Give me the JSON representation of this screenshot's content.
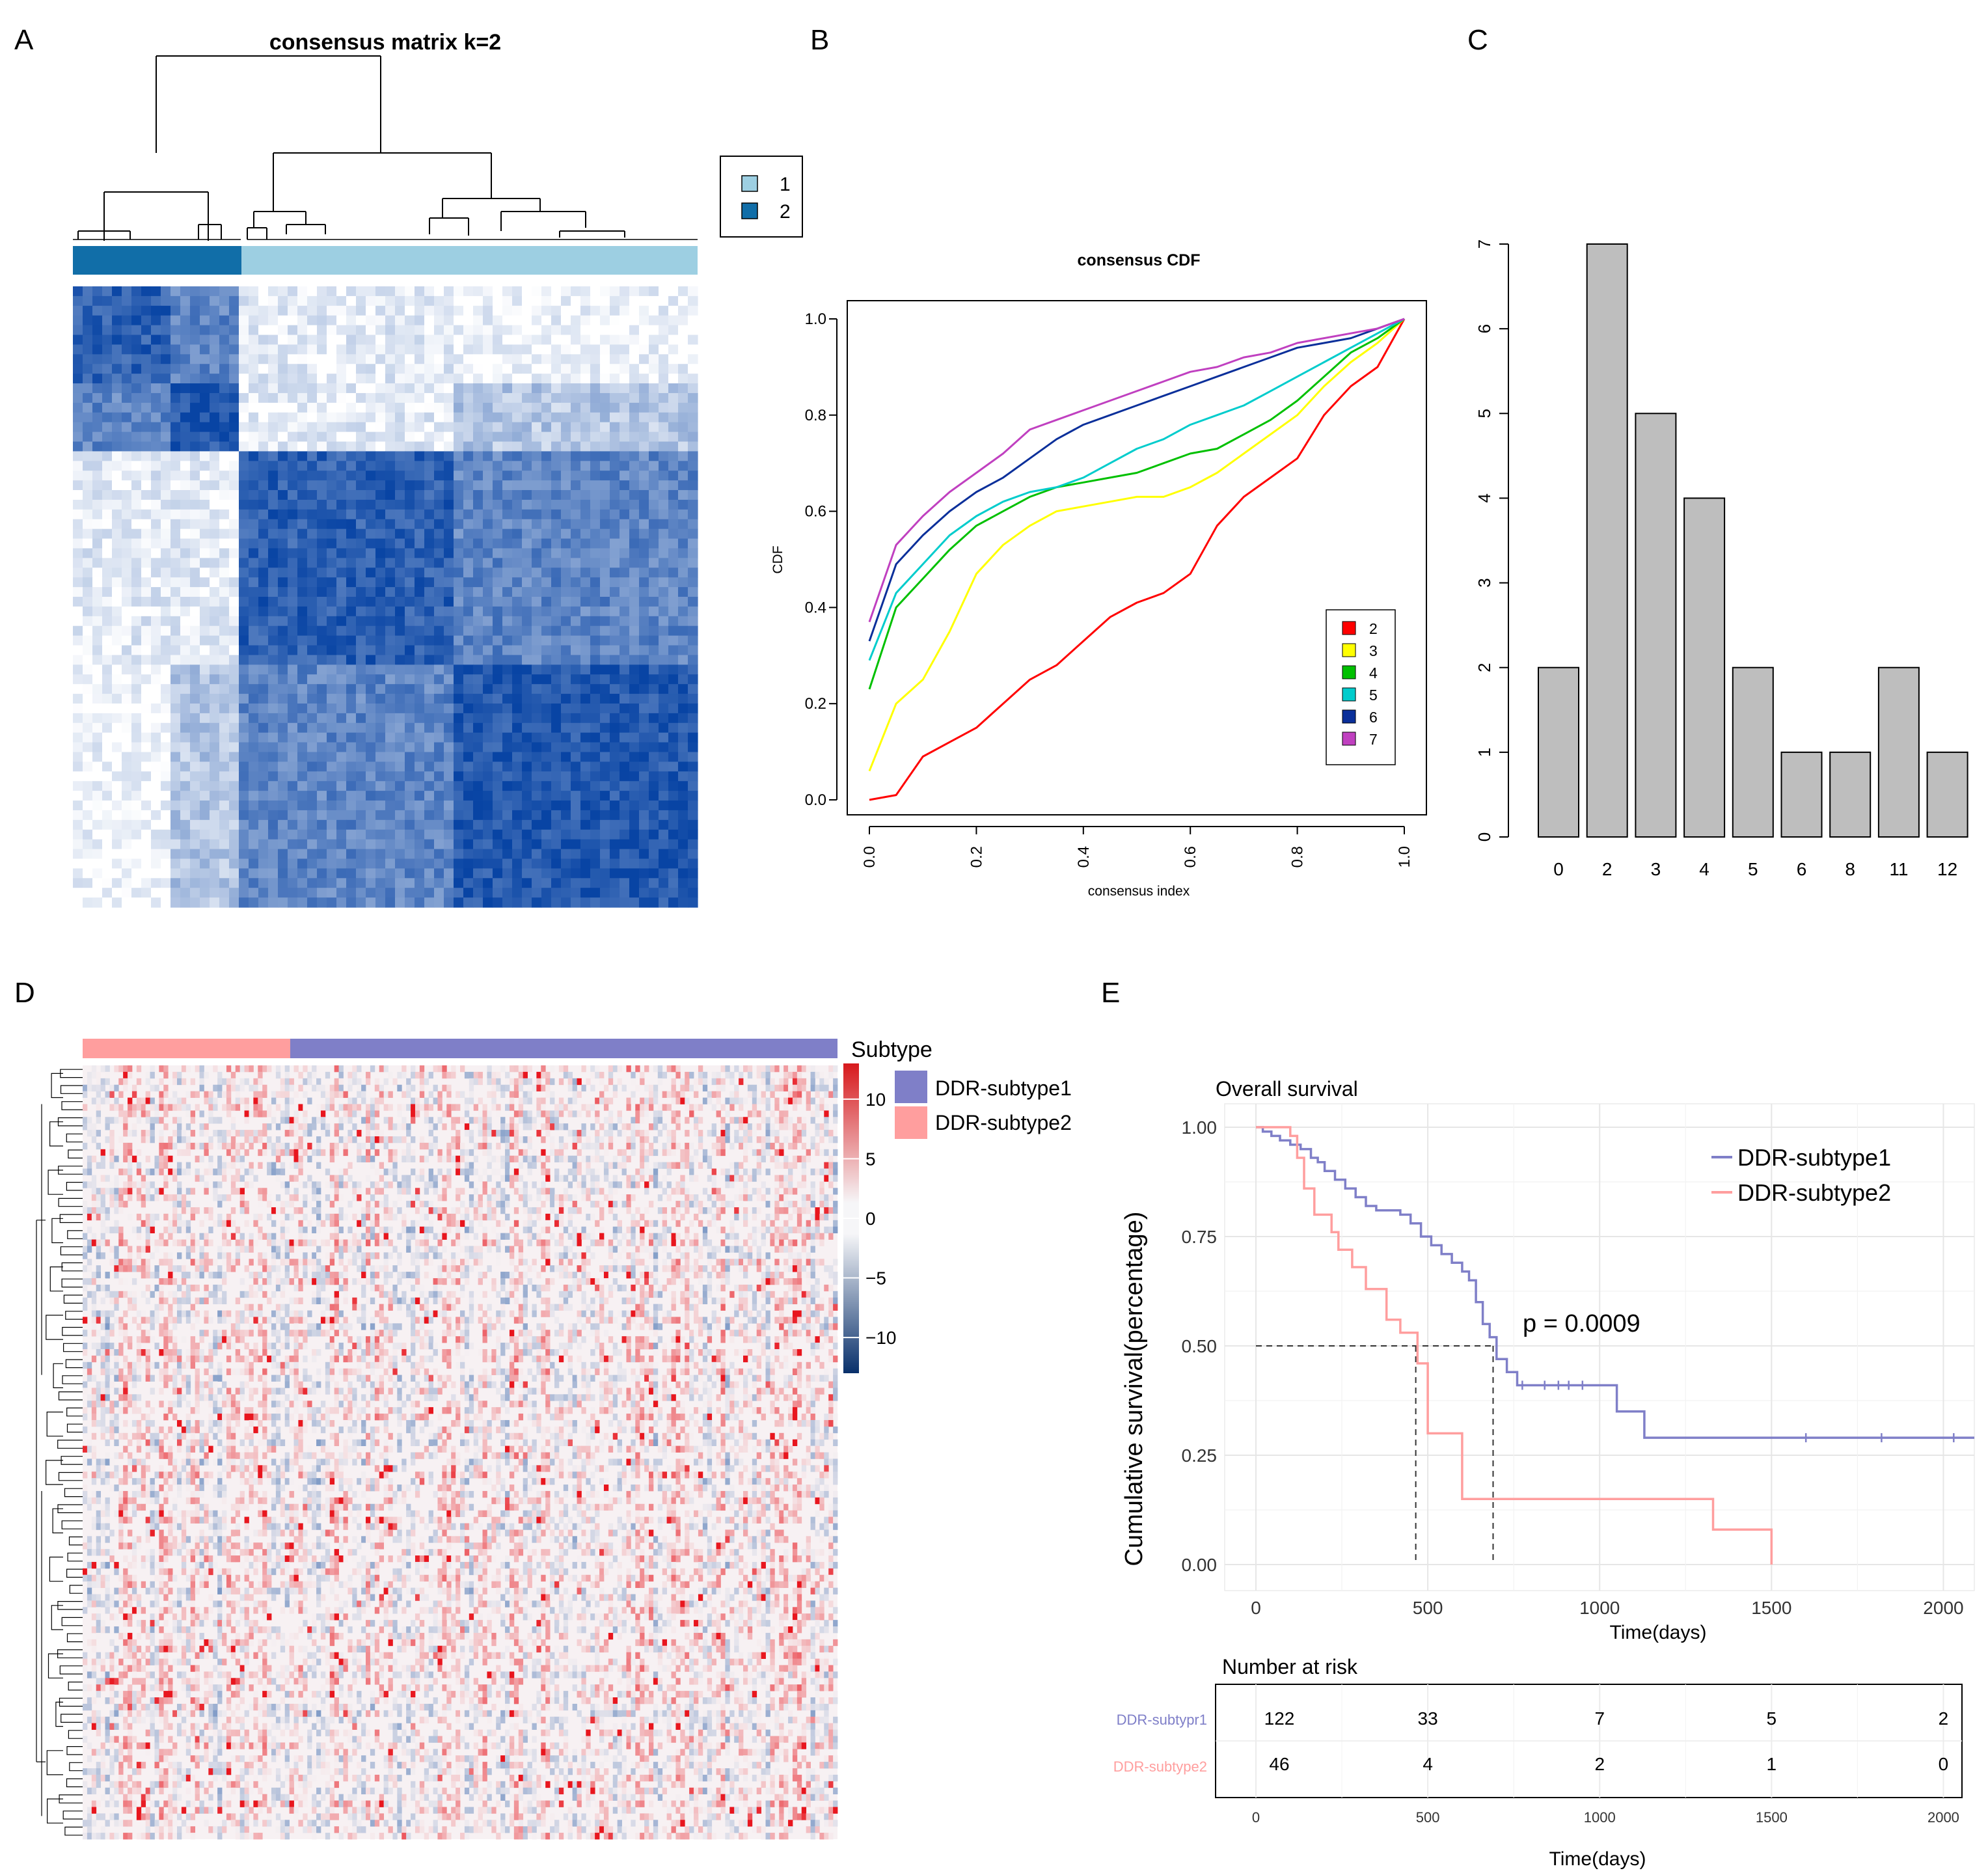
{
  "panel_labels": {
    "a": "A",
    "b": "B",
    "c": "C",
    "d": "D",
    "e": "E"
  },
  "colors": {
    "consensus_dark": "#0844a4",
    "consensus_light": "#ffffff",
    "bar_fill": "#bebebe",
    "subtype1": "#7f7fc8",
    "subtype2": "#ff9e9e",
    "heat_low": "#2c5fa8",
    "heat_high": "#e8161e"
  },
  "chart_data": [
    {
      "id": "A",
      "type": "heatmap",
      "title": "consensus matrix k=2",
      "legend": [
        {
          "label": "1",
          "color": "#9dcfe2"
        },
        {
          "label": "2",
          "color": "#116ea8"
        }
      ],
      "cluster_order": [
        2,
        1
      ],
      "cluster_fraction": [
        0.27,
        0.73
      ],
      "block_consensus": [
        [
          0.9,
          0.12
        ],
        [
          0.12,
          0.8
        ]
      ]
    },
    {
      "id": "B",
      "type": "line",
      "title": "consensus CDF",
      "xlabel": "consensus index",
      "ylabel": "CDF",
      "xlim": [
        0,
        1
      ],
      "ylim": [
        0,
        1
      ],
      "xticks": [
        "0.0",
        "0.2",
        "0.4",
        "0.6",
        "0.8",
        "1.0"
      ],
      "yticks": [
        "0.0",
        "0.2",
        "0.4",
        "0.6",
        "0.8",
        "1.0"
      ],
      "x": [
        0.0,
        0.05,
        0.1,
        0.15,
        0.2,
        0.25,
        0.3,
        0.35,
        0.4,
        0.45,
        0.5,
        0.55,
        0.6,
        0.65,
        0.7,
        0.75,
        0.8,
        0.85,
        0.9,
        0.95,
        1.0
      ],
      "series": [
        {
          "name": "2",
          "color": "#ff0000",
          "values": [
            0.0,
            0.01,
            0.09,
            0.12,
            0.15,
            0.2,
            0.25,
            0.28,
            0.33,
            0.38,
            0.41,
            0.43,
            0.47,
            0.57,
            0.63,
            0.67,
            0.71,
            0.8,
            0.86,
            0.9,
            1.0
          ]
        },
        {
          "name": "3",
          "color": "#ffff00",
          "values": [
            0.06,
            0.2,
            0.25,
            0.35,
            0.47,
            0.53,
            0.57,
            0.6,
            0.61,
            0.62,
            0.63,
            0.63,
            0.65,
            0.68,
            0.72,
            0.76,
            0.8,
            0.86,
            0.91,
            0.95,
            1.0
          ]
        },
        {
          "name": "4",
          "color": "#00c000",
          "values": [
            0.23,
            0.4,
            0.46,
            0.52,
            0.57,
            0.6,
            0.63,
            0.65,
            0.66,
            0.67,
            0.68,
            0.7,
            0.72,
            0.73,
            0.76,
            0.79,
            0.83,
            0.88,
            0.93,
            0.96,
            1.0
          ]
        },
        {
          "name": "5",
          "color": "#00cccc",
          "values": [
            0.29,
            0.43,
            0.49,
            0.55,
            0.59,
            0.62,
            0.64,
            0.65,
            0.67,
            0.7,
            0.73,
            0.75,
            0.78,
            0.8,
            0.82,
            0.85,
            0.88,
            0.91,
            0.94,
            0.97,
            1.0
          ]
        },
        {
          "name": "6",
          "color": "#0a2f9a",
          "values": [
            0.33,
            0.49,
            0.55,
            0.6,
            0.64,
            0.67,
            0.71,
            0.75,
            0.78,
            0.8,
            0.82,
            0.84,
            0.86,
            0.88,
            0.9,
            0.92,
            0.94,
            0.95,
            0.96,
            0.98,
            1.0
          ]
        },
        {
          "name": "7",
          "color": "#c040c0",
          "values": [
            0.37,
            0.53,
            0.59,
            0.64,
            0.68,
            0.72,
            0.77,
            0.79,
            0.81,
            0.83,
            0.85,
            0.87,
            0.89,
            0.9,
            0.92,
            0.93,
            0.95,
            0.96,
            0.97,
            0.98,
            1.0
          ]
        }
      ]
    },
    {
      "id": "C",
      "type": "bar",
      "categories": [
        "0",
        "2",
        "3",
        "4",
        "5",
        "6",
        "8",
        "11",
        "12"
      ],
      "values": [
        2,
        7,
        5,
        4,
        2,
        1,
        1,
        2,
        1
      ],
      "yticks": [
        "0",
        "1",
        "2",
        "3",
        "4",
        "5",
        "6",
        "7"
      ],
      "ylim": [
        0,
        7
      ]
    },
    {
      "id": "D",
      "type": "heatmap",
      "annotation_title": "Subtype",
      "legend": [
        {
          "label": "DDR-subtype1",
          "color": "#7f7fc8"
        },
        {
          "label": "DDR-subtype2",
          "color": "#ff9e9e"
        }
      ],
      "color_scale_ticks": [
        "10",
        "5",
        "0",
        "−5",
        "−10"
      ],
      "color_scale_values": [
        10,
        5,
        0,
        -5,
        -10
      ],
      "color_range": [
        -13,
        13
      ],
      "subtype2_fraction": 0.275
    },
    {
      "id": "E",
      "type": "line",
      "title": "Overall survival",
      "ylabel": "Cumulative survival(percentage)",
      "xlabel": "Time(days)",
      "xlim": [
        0,
        2090
      ],
      "ylim": [
        0,
        1
      ],
      "xticks": [
        "0",
        "500",
        "1000",
        "1500",
        "2000"
      ],
      "yticks": [
        "0.00",
        "0.25",
        "0.50",
        "0.75",
        "1.00"
      ],
      "pvalue": "p = 0.0009",
      "median_times": [
        690,
        465
      ],
      "series": [
        {
          "name": "DDR-subtype1",
          "color": "#7f7fc8",
          "steps": [
            [
              0,
              1.0
            ],
            [
              20,
              0.99
            ],
            [
              45,
              0.98
            ],
            [
              70,
              0.97
            ],
            [
              100,
              0.96
            ],
            [
              130,
              0.95
            ],
            [
              160,
              0.93
            ],
            [
              180,
              0.92
            ],
            [
              200,
              0.9
            ],
            [
              230,
              0.88
            ],
            [
              260,
              0.86
            ],
            [
              290,
              0.84
            ],
            [
              320,
              0.82
            ],
            [
              350,
              0.81
            ],
            [
              420,
              0.8
            ],
            [
              450,
              0.78
            ],
            [
              480,
              0.75
            ],
            [
              510,
              0.73
            ],
            [
              540,
              0.71
            ],
            [
              570,
              0.69
            ],
            [
              600,
              0.67
            ],
            [
              620,
              0.65
            ],
            [
              640,
              0.6
            ],
            [
              660,
              0.55
            ],
            [
              680,
              0.52
            ],
            [
              700,
              0.47
            ],
            [
              730,
              0.44
            ],
            [
              760,
              0.41
            ],
            [
              1050,
              0.35
            ],
            [
              1130,
              0.29
            ],
            [
              2090,
              0.29
            ]
          ]
        },
        {
          "name": "DDR-subtype2",
          "color": "#ff9e9e",
          "steps": [
            [
              0,
              1.0
            ],
            [
              100,
              0.98
            ],
            [
              120,
              0.93
            ],
            [
              140,
              0.86
            ],
            [
              170,
              0.8
            ],
            [
              220,
              0.76
            ],
            [
              240,
              0.72
            ],
            [
              280,
              0.68
            ],
            [
              320,
              0.63
            ],
            [
              380,
              0.56
            ],
            [
              420,
              0.53
            ],
            [
              470,
              0.46
            ],
            [
              500,
              0.3
            ],
            [
              600,
              0.15
            ],
            [
              1330,
              0.08
            ],
            [
              1500,
              0.0
            ]
          ]
        }
      ]
    }
  ],
  "risk_table": {
    "title": "Number at risk",
    "xlabel": "Time(days)",
    "xticks": [
      "0",
      "500",
      "1000",
      "1500",
      "2000"
    ],
    "rows": [
      {
        "label": "DDR-subtypr1",
        "color": "#7f7fc8",
        "values": [
          "122",
          "33",
          "7",
          "5",
          "2"
        ]
      },
      {
        "label": "DDR-subtype2",
        "color": "#ff9e9e",
        "values": [
          "46",
          "4",
          "2",
          "1",
          "0"
        ]
      }
    ]
  }
}
